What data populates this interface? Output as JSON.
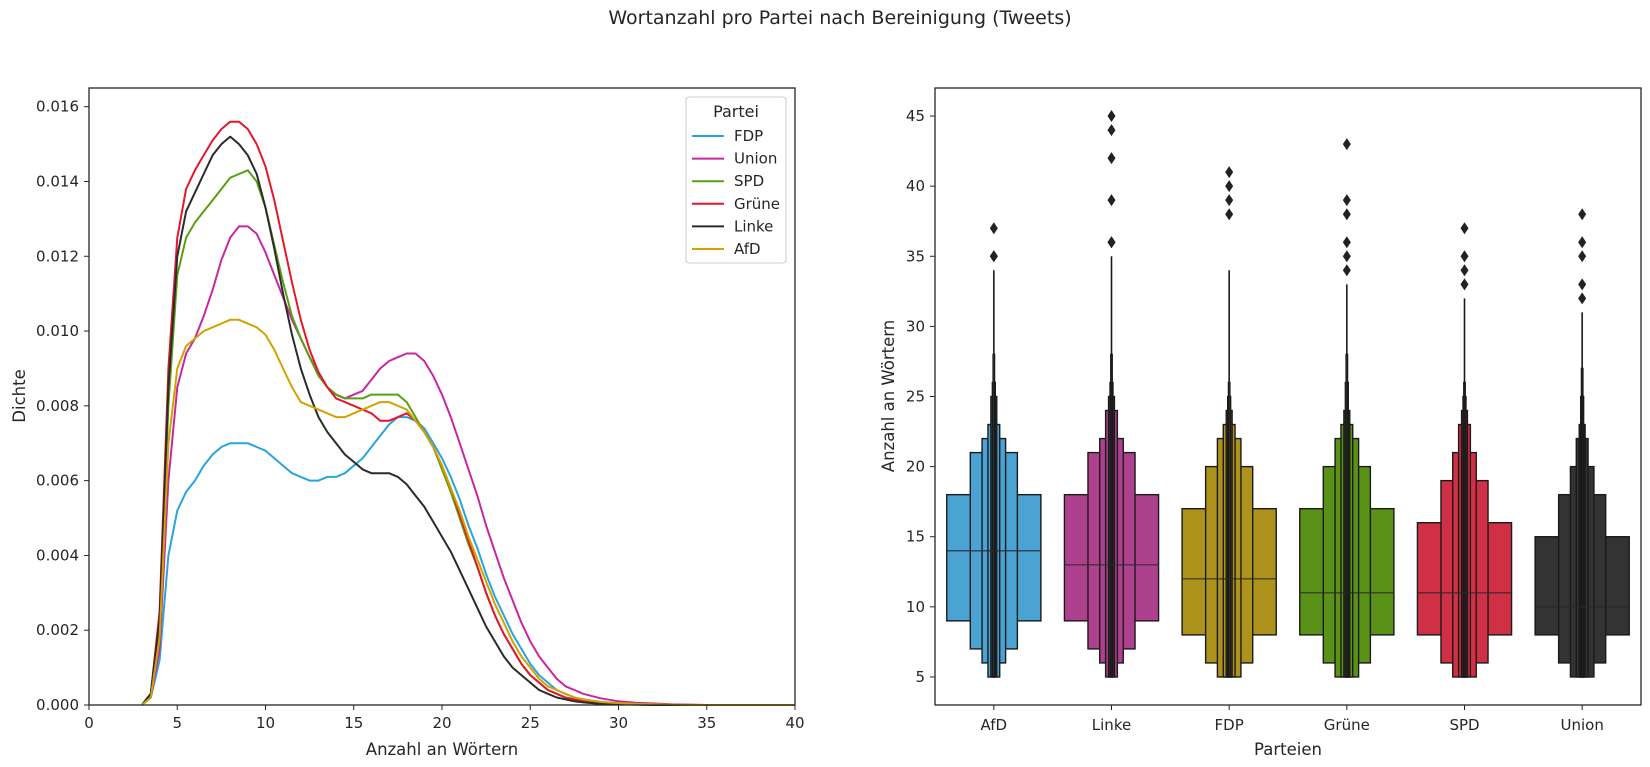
{
  "figure": {
    "title": "Wortanzahl pro Partei nach Bereinigung (Tweets)"
  },
  "colors": {
    "FDP": "#2aa4dd",
    "Union": "#c8279e",
    "SPD": "#5a9f10",
    "Grüne": "#e3172e",
    "Linke": "#2b2b2b",
    "AfD": "#cfa400"
  },
  "chart_data": [
    {
      "type": "line",
      "xlabel": "Anzahl an Wörtern",
      "ylabel": "Dichte",
      "xlim": [
        0,
        40
      ],
      "ylim": [
        0,
        0.0165
      ],
      "xticks": [
        "0",
        "5",
        "10",
        "15",
        "20",
        "25",
        "30",
        "35",
        "40"
      ],
      "yticks": [
        "0.000",
        "0.002",
        "0.004",
        "0.006",
        "0.008",
        "0.010",
        "0.012",
        "0.014",
        "0.016"
      ],
      "grid": false,
      "legend": {
        "title": "Partei",
        "placement": "upper-right",
        "entries": [
          "FDP",
          "Union",
          "SPD",
          "Grüne",
          "Linke",
          "AfD"
        ]
      },
      "x": [
        3,
        3.5,
        4,
        4.5,
        5,
        5.5,
        6,
        6.5,
        7,
        7.5,
        8,
        8.5,
        9,
        9.5,
        10,
        10.5,
        11,
        11.5,
        12,
        12.5,
        13,
        13.5,
        14,
        14.5,
        15,
        15.5,
        16,
        16.5,
        17,
        17.5,
        18,
        18.5,
        19,
        19.5,
        20,
        20.5,
        21,
        21.5,
        22,
        22.5,
        23,
        23.5,
        24,
        24.5,
        25,
        25.5,
        26,
        26.5,
        27,
        27.5,
        28,
        29,
        30,
        31,
        32,
        33,
        34,
        35,
        36,
        37,
        38,
        39,
        40
      ],
      "series": [
        {
          "name": "FDP",
          "values": [
            0.0,
            0.0002,
            0.0012,
            0.004,
            0.0052,
            0.0057,
            0.006,
            0.0064,
            0.0067,
            0.0069,
            0.007,
            0.007,
            0.007,
            0.0069,
            0.0068,
            0.0066,
            0.0064,
            0.0062,
            0.0061,
            0.006,
            0.006,
            0.0061,
            0.0061,
            0.0062,
            0.0064,
            0.0066,
            0.0069,
            0.0072,
            0.0075,
            0.0077,
            0.0077,
            0.0076,
            0.0074,
            0.007,
            0.0066,
            0.0061,
            0.0055,
            0.0048,
            0.0042,
            0.0035,
            0.0029,
            0.0024,
            0.0019,
            0.0015,
            0.0011,
            0.0008,
            0.0006,
            0.0004,
            0.0003,
            0.0002,
            0.00015,
            8e-05,
            5e-05,
            3e-05,
            2e-05,
            1e-05,
            0,
            0,
            0,
            0,
            0,
            0,
            0
          ]
        },
        {
          "name": "Union",
          "values": [
            0.0,
            0.0002,
            0.0015,
            0.006,
            0.0085,
            0.0094,
            0.0098,
            0.0104,
            0.0111,
            0.0119,
            0.0125,
            0.0128,
            0.0128,
            0.0126,
            0.0121,
            0.0115,
            0.0109,
            0.0103,
            0.0098,
            0.0093,
            0.0089,
            0.0085,
            0.0083,
            0.0082,
            0.0083,
            0.0084,
            0.0087,
            0.009,
            0.0092,
            0.0093,
            0.0094,
            0.0094,
            0.0092,
            0.0088,
            0.0083,
            0.0077,
            0.007,
            0.0063,
            0.0056,
            0.0048,
            0.0041,
            0.0034,
            0.0028,
            0.0022,
            0.0017,
            0.0013,
            0.001,
            0.0007,
            0.0005,
            0.0004,
            0.0003,
            0.00018,
            0.0001,
            6e-05,
            4e-05,
            2e-05,
            1e-05,
            0,
            0,
            0,
            0,
            0,
            0
          ]
        },
        {
          "name": "SPD",
          "values": [
            0.0,
            0.0003,
            0.0022,
            0.008,
            0.0115,
            0.0125,
            0.0129,
            0.0132,
            0.0135,
            0.0138,
            0.0141,
            0.0142,
            0.0143,
            0.014,
            0.0133,
            0.0123,
            0.0113,
            0.0104,
            0.0098,
            0.0093,
            0.0088,
            0.0085,
            0.0083,
            0.0082,
            0.0082,
            0.0082,
            0.0083,
            0.0083,
            0.0083,
            0.0083,
            0.0081,
            0.0077,
            0.0073,
            0.0069,
            0.0063,
            0.0057,
            0.005,
            0.0043,
            0.0037,
            0.003,
            0.0024,
            0.0019,
            0.0015,
            0.0011,
            0.0008,
            0.0006,
            0.0004,
            0.0003,
            0.0002,
            0.00015,
            0.0001,
            5e-05,
            3e-05,
            2e-05,
            1e-05,
            0,
            0,
            0,
            0,
            0,
            0,
            0,
            0
          ]
        },
        {
          "name": "Grüne",
          "values": [
            0.0,
            0.0003,
            0.0025,
            0.009,
            0.0125,
            0.0138,
            0.0143,
            0.0147,
            0.0151,
            0.0154,
            0.0156,
            0.0156,
            0.0154,
            0.015,
            0.0144,
            0.0135,
            0.0124,
            0.0113,
            0.0103,
            0.0095,
            0.0089,
            0.0085,
            0.0082,
            0.0081,
            0.008,
            0.0079,
            0.0078,
            0.0076,
            0.0076,
            0.0077,
            0.0078,
            0.0076,
            0.0073,
            0.0069,
            0.0064,
            0.0058,
            0.0051,
            0.0044,
            0.0037,
            0.003,
            0.0024,
            0.0019,
            0.0015,
            0.0011,
            0.0008,
            0.0006,
            0.0004,
            0.0003,
            0.0002,
            0.00015,
            0.0001,
            5e-05,
            3e-05,
            2e-05,
            1e-05,
            0,
            0,
            0,
            0,
            0,
            0,
            0,
            0
          ]
        },
        {
          "name": "Linke",
          "values": [
            0.0,
            0.0003,
            0.0023,
            0.0085,
            0.012,
            0.0132,
            0.0137,
            0.0142,
            0.0147,
            0.015,
            0.0152,
            0.015,
            0.0147,
            0.0142,
            0.0133,
            0.0122,
            0.011,
            0.0099,
            0.009,
            0.0083,
            0.0077,
            0.0073,
            0.007,
            0.0067,
            0.0065,
            0.0063,
            0.0062,
            0.0062,
            0.0062,
            0.0061,
            0.0059,
            0.0056,
            0.0053,
            0.0049,
            0.0045,
            0.0041,
            0.0036,
            0.0031,
            0.0026,
            0.0021,
            0.0017,
            0.0013,
            0.001,
            0.0008,
            0.0006,
            0.0004,
            0.0003,
            0.0002,
            0.00015,
            0.0001,
            7e-05,
            3e-05,
            2e-05,
            1e-05,
            0,
            0,
            0,
            0,
            0,
            0,
            0,
            0,
            0
          ]
        },
        {
          "name": "AfD",
          "values": [
            0.0,
            0.0002,
            0.0018,
            0.007,
            0.009,
            0.0096,
            0.0098,
            0.01,
            0.0101,
            0.0102,
            0.0103,
            0.0103,
            0.0102,
            0.0101,
            0.0099,
            0.0095,
            0.009,
            0.0085,
            0.0081,
            0.008,
            0.0079,
            0.0078,
            0.0077,
            0.0077,
            0.0078,
            0.0079,
            0.008,
            0.0081,
            0.0081,
            0.008,
            0.0079,
            0.0076,
            0.0073,
            0.0069,
            0.0064,
            0.0058,
            0.0052,
            0.0045,
            0.0039,
            0.0033,
            0.0027,
            0.0022,
            0.0017,
            0.0013,
            0.001,
            0.0007,
            0.0005,
            0.0004,
            0.0003,
            0.0002,
            0.00015,
            8e-05,
            5e-05,
            3e-05,
            2e-05,
            1e-05,
            0,
            0,
            0,
            0,
            0,
            0,
            0
          ]
        }
      ]
    },
    {
      "type": "boxen",
      "xlabel": "Parteien",
      "ylabel": "Anzahl an Wörtern",
      "ylim": [
        3,
        47
      ],
      "yticks": [
        "5",
        "10",
        "15",
        "20",
        "25",
        "30",
        "35",
        "40",
        "45"
      ],
      "grid": false,
      "categories": [
        "AfD",
        "Linke",
        "FDP",
        "Grüne",
        "SPD",
        "Union"
      ],
      "boxes": [
        {
          "name": "AfD",
          "color": "#4ba3d3",
          "median": 14,
          "levels": [
            [
              9,
              18
            ],
            [
              7,
              21
            ],
            [
              6,
              22
            ],
            [
              5,
              23
            ],
            [
              5,
              25
            ],
            [
              5,
              26
            ],
            [
              5,
              28
            ],
            [
              5,
              31
            ],
            [
              5,
              34
            ]
          ],
          "outliers": [
            35,
            35,
            37
          ]
        },
        {
          "name": "Linke",
          "color": "#ae418d",
          "median": 13,
          "levels": [
            [
              9,
              18
            ],
            [
              7,
              21
            ],
            [
              6,
              22
            ],
            [
              5,
              24
            ],
            [
              5,
              25
            ],
            [
              5,
              26
            ],
            [
              5,
              28
            ],
            [
              5,
              29
            ],
            [
              5,
              35
            ]
          ],
          "outliers": [
            36,
            36,
            39,
            42,
            44,
            45
          ]
        },
        {
          "name": "FDP",
          "color": "#ad921c",
          "median": 12,
          "levels": [
            [
              8,
              17
            ],
            [
              6,
              20
            ],
            [
              5,
              22
            ],
            [
              5,
              23
            ],
            [
              5,
              24
            ],
            [
              5,
              25
            ],
            [
              5,
              26
            ],
            [
              5,
              28
            ],
            [
              5,
              34
            ]
          ],
          "outliers": [
            38,
            39,
            40,
            41
          ]
        },
        {
          "name": "Grüne",
          "color": "#5a9218",
          "median": 11,
          "levels": [
            [
              8,
              17
            ],
            [
              6,
              20
            ],
            [
              5,
              22
            ],
            [
              5,
              23
            ],
            [
              5,
              24
            ],
            [
              5,
              26
            ],
            [
              5,
              28
            ],
            [
              5,
              31
            ],
            [
              5,
              33
            ]
          ],
          "outliers": [
            34,
            35,
            36,
            38,
            39,
            43
          ]
        },
        {
          "name": "SPD",
          "color": "#d03045",
          "median": 11,
          "levels": [
            [
              8,
              16
            ],
            [
              6,
              19
            ],
            [
              5,
              21
            ],
            [
              5,
              23
            ],
            [
              5,
              24
            ],
            [
              5,
              25
            ],
            [
              5,
              26
            ],
            [
              5,
              30
            ],
            [
              5,
              32
            ]
          ],
          "outliers": [
            33,
            34,
            35,
            37
          ]
        },
        {
          "name": "Union",
          "color": "#333333",
          "median": 10,
          "levels": [
            [
              8,
              15
            ],
            [
              6,
              18
            ],
            [
              5,
              20
            ],
            [
              5,
              22
            ],
            [
              5,
              23
            ],
            [
              5,
              25
            ],
            [
              5,
              27
            ],
            [
              5,
              29
            ],
            [
              5,
              31
            ]
          ],
          "outliers": [
            32,
            33,
            35,
            36,
            38
          ]
        }
      ]
    }
  ]
}
